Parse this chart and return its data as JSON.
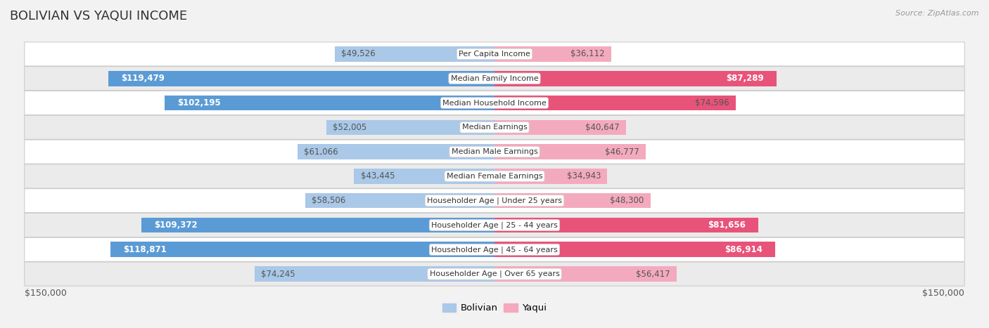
{
  "title": "BOLIVIAN VS YAQUI INCOME",
  "source": "Source: ZipAtlas.com",
  "categories": [
    "Per Capita Income",
    "Median Family Income",
    "Median Household Income",
    "Median Earnings",
    "Median Male Earnings",
    "Median Female Earnings",
    "Householder Age | Under 25 years",
    "Householder Age | 25 - 44 years",
    "Householder Age | 45 - 64 years",
    "Householder Age | Over 65 years"
  ],
  "bolivian_values": [
    49526,
    119479,
    102195,
    52005,
    61066,
    43445,
    58506,
    109372,
    118871,
    74245
  ],
  "yaqui_values": [
    36112,
    87289,
    74596,
    40647,
    46777,
    34943,
    48300,
    81656,
    86914,
    56417
  ],
  "bolivian_labels": [
    "$49,526",
    "$119,479",
    "$102,195",
    "$52,005",
    "$61,066",
    "$43,445",
    "$58,506",
    "$109,372",
    "$118,871",
    "$74,245"
  ],
  "yaqui_labels": [
    "$36,112",
    "$87,289",
    "$74,596",
    "$40,647",
    "$46,777",
    "$34,943",
    "$48,300",
    "$81,656",
    "$86,914",
    "$56,417"
  ],
  "bolivian_color_light": "#aac8e8",
  "bolivian_color_dark": "#5b9bd5",
  "yaqui_color_light": "#f4aabe",
  "yaqui_color_dark": "#e8537a",
  "xlim": 150000,
  "bar_height": 0.62,
  "background_color": "#f2f2f2",
  "row_color_odd": "#ffffff",
  "row_color_even": "#ebebeb",
  "legend_bolivian": "Bolivian",
  "legend_yaqui": "Yaqui",
  "axis_label_left": "$150,000",
  "axis_label_right": "$150,000",
  "inside_label_thresh": 80000,
  "label_color_inside": "#ffffff",
  "label_color_outside": "#555555",
  "label_fontsize": 8.5,
  "cat_fontsize": 8.0,
  "title_fontsize": 13,
  "source_fontsize": 8
}
